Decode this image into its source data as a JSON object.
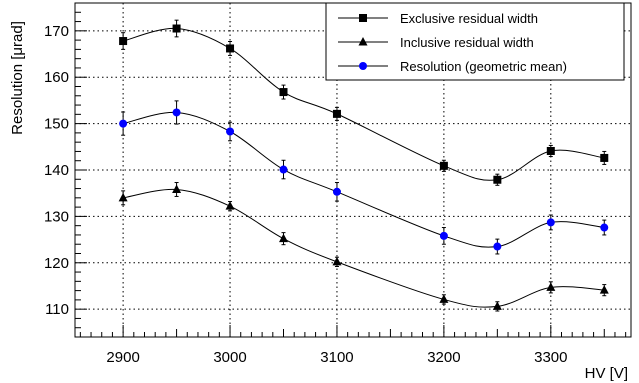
{
  "chart_data": {
    "type": "line",
    "xlabel": "HV [V]",
    "ylabel": "Resolution [μrad]",
    "xlim": [
      2855,
      3375
    ],
    "ylim": [
      104,
      176
    ],
    "xticks": [
      2900,
      3000,
      3100,
      3200,
      3300
    ],
    "yticks": [
      110,
      120,
      130,
      140,
      150,
      160,
      170
    ],
    "grid": true,
    "legend_position": "top-right",
    "x": [
      2900,
      2950,
      3000,
      3050,
      3100,
      3200,
      3250,
      3300,
      3350
    ],
    "series": [
      {
        "name": "Exclusive residual width",
        "marker": "square",
        "color": "#000000",
        "values": [
          167.8,
          170.5,
          166.2,
          156.8,
          152.1,
          140.9,
          137.9,
          144.1,
          142.6
        ],
        "errors": [
          1.8,
          1.8,
          1.5,
          1.5,
          1.4,
          1.2,
          1.2,
          1.2,
          1.4
        ]
      },
      {
        "name": "Inclusive residual width",
        "marker": "triangle",
        "color": "#000000",
        "values": [
          134.0,
          135.8,
          132.2,
          125.2,
          120.2,
          112.1,
          110.6,
          114.7,
          114.1
        ],
        "errors": [
          1.5,
          1.5,
          1.0,
          1.3,
          1.0,
          1.0,
          1.0,
          1.2,
          1.2
        ]
      },
      {
        "name": "Resolution (geometric mean)",
        "marker": "circle",
        "color": "#0000ff",
        "values": [
          150.0,
          152.4,
          148.3,
          140.1,
          135.3,
          125.8,
          123.5,
          128.7,
          127.6
        ],
        "errors": [
          2.5,
          2.5,
          2.0,
          2.0,
          2.0,
          1.8,
          1.6,
          1.6,
          1.6
        ]
      }
    ]
  }
}
